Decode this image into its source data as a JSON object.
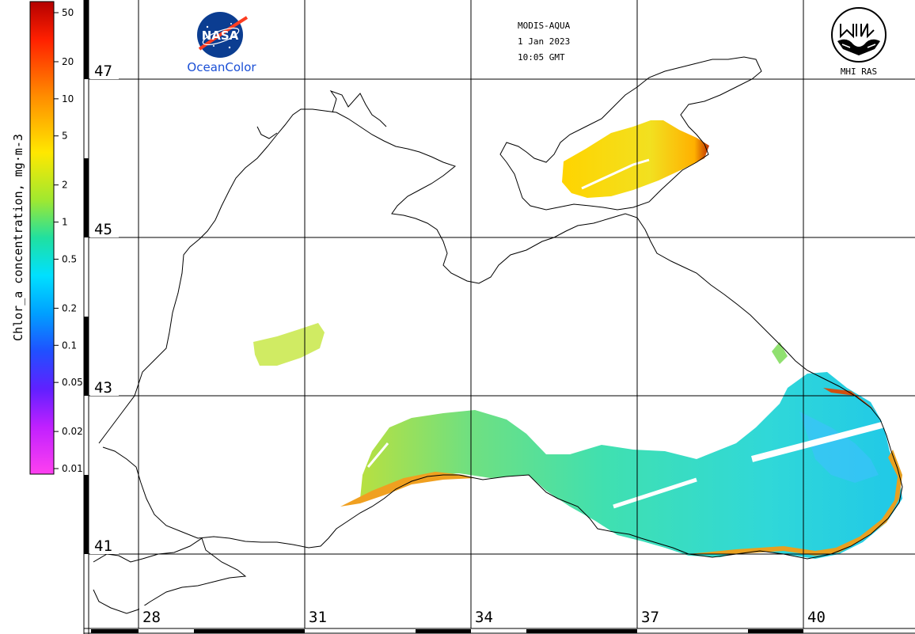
{
  "colorbar": {
    "title": "Chlor_a concentration, mg·m-3",
    "ticks": [
      "50",
      "20",
      "10",
      "5",
      "2",
      "1",
      "0.5",
      "0.2",
      "0.1",
      "0.05",
      "0.02",
      "0.01"
    ]
  },
  "latitudes": [
    "47",
    "45",
    "43",
    "41"
  ],
  "longitudes": [
    "28",
    "31",
    "34",
    "37",
    "40"
  ],
  "info": {
    "sensor": "MODIS-AQUA",
    "date": "1 Jan 2023",
    "time": "10:05 GMT"
  },
  "logos": {
    "nasa": {
      "word": "NASA",
      "caption": "OceanColor"
    },
    "mhi": {
      "caption": "MHI RAS"
    }
  },
  "colors": {
    "nasa_blue": "#0b3d91",
    "nasa_red": "#fc3d21",
    "ocean_caption": "#1a4fd6"
  }
}
